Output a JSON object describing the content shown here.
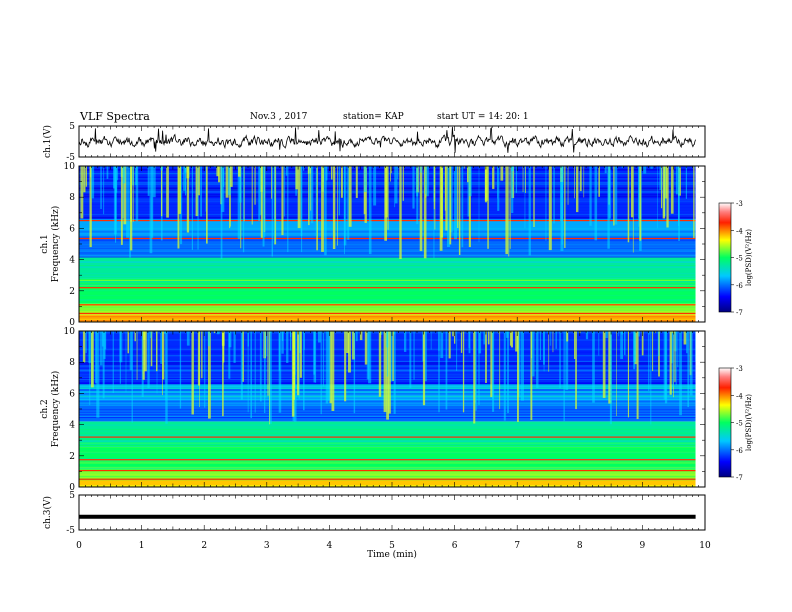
{
  "header": {
    "title": "VLF Spectra",
    "date": "Nov.3  , 2017",
    "station": "station= KAP",
    "start_ut": "start  UT  =   14: 20: 1"
  },
  "chart_data": [
    {
      "type": "line",
      "panel": "ch1-waveform",
      "ylabel": "ch.1(V)",
      "ylim": [
        -5,
        5
      ],
      "yticks": [
        "5",
        "-5"
      ],
      "xlim": [
        0,
        10
      ],
      "color": "#000000"
    },
    {
      "type": "heatmap",
      "panel": "ch1-spectrogram",
      "ylabel_line1": "ch.1",
      "ylabel_line2": "Frequency  (kHz)",
      "ylim": [
        0,
        10
      ],
      "yticks": [
        0,
        2,
        4,
        6,
        8,
        10
      ],
      "xlim": [
        0,
        10
      ],
      "colorbar": {
        "label": "log(PSD)(V²/Hz)",
        "ticks": [
          -3,
          -4,
          -5,
          -6,
          -7
        ],
        "range": [
          -7,
          -3
        ]
      }
    },
    {
      "type": "heatmap",
      "panel": "ch2-spectrogram",
      "ylabel_line1": "ch.2",
      "ylabel_line2": "Frequency  (kHz)",
      "ylim": [
        0,
        10
      ],
      "yticks": [
        0,
        2,
        4,
        6,
        8,
        10
      ],
      "xlim": [
        0,
        10
      ],
      "colorbar": {
        "label": "log(PSD)(V²/Hz)",
        "ticks": [
          -3,
          -4,
          -5,
          -6,
          -7
        ],
        "range": [
          -7,
          -3
        ]
      }
    },
    {
      "type": "line",
      "panel": "ch3-waveform",
      "ylabel": "ch.3(V)",
      "ylim": [
        -5,
        5
      ],
      "yticks": [
        "5",
        "-5"
      ],
      "xlim": [
        0,
        10
      ],
      "x": [
        0,
        9.85
      ],
      "y": [
        -1.2,
        -1.2
      ],
      "color": "#000000"
    }
  ],
  "xaxis": {
    "label": "Time  (min)",
    "ticks": [
      "0",
      "1",
      "2",
      "3",
      "4",
      "5",
      "6",
      "7",
      "8",
      "9",
      "10"
    ]
  },
  "colors": {
    "line": "#000000",
    "background": "#ffffff"
  }
}
